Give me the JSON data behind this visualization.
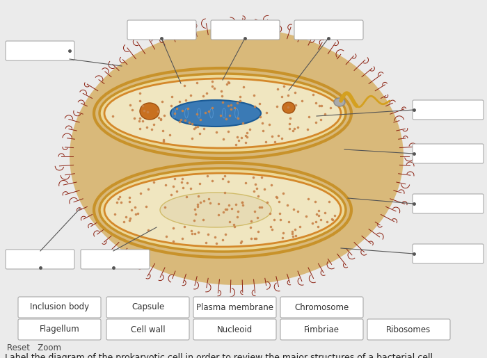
{
  "title": "Label the diagram of the prokaryotic cell in order to review the major structures of a bacterial cell.",
  "word_bank_row1": [
    "Flagellum",
    "Cell wall",
    "Nucleoid",
    "Fimbriae",
    "Ribosomes"
  ],
  "word_bank_row2": [
    "Inclusion body",
    "Capsule",
    "Plasma membrane",
    "Chromosome"
  ],
  "bg_color": "#ebebeb",
  "box_facecolor": "#ffffff",
  "box_edgecolor": "#aaaaaa",
  "title_fontsize": 9.0,
  "word_bank_fontsize": 8.5,
  "capsule_outer_color": "#d9b97a",
  "capsule_wall_color": "#c8922a",
  "capsule_membrane_color": "#d4882a",
  "cytoplasm_color": "#f0e6c0",
  "nucleoid_color": "#ddd0a0",
  "chromosome_color": "#3a7ab5",
  "inclusion_color": "#c87020",
  "fimbriae_color": "#8B2010",
  "flagellum_color": "#d4a020",
  "ribosome_color": "#c8834a"
}
